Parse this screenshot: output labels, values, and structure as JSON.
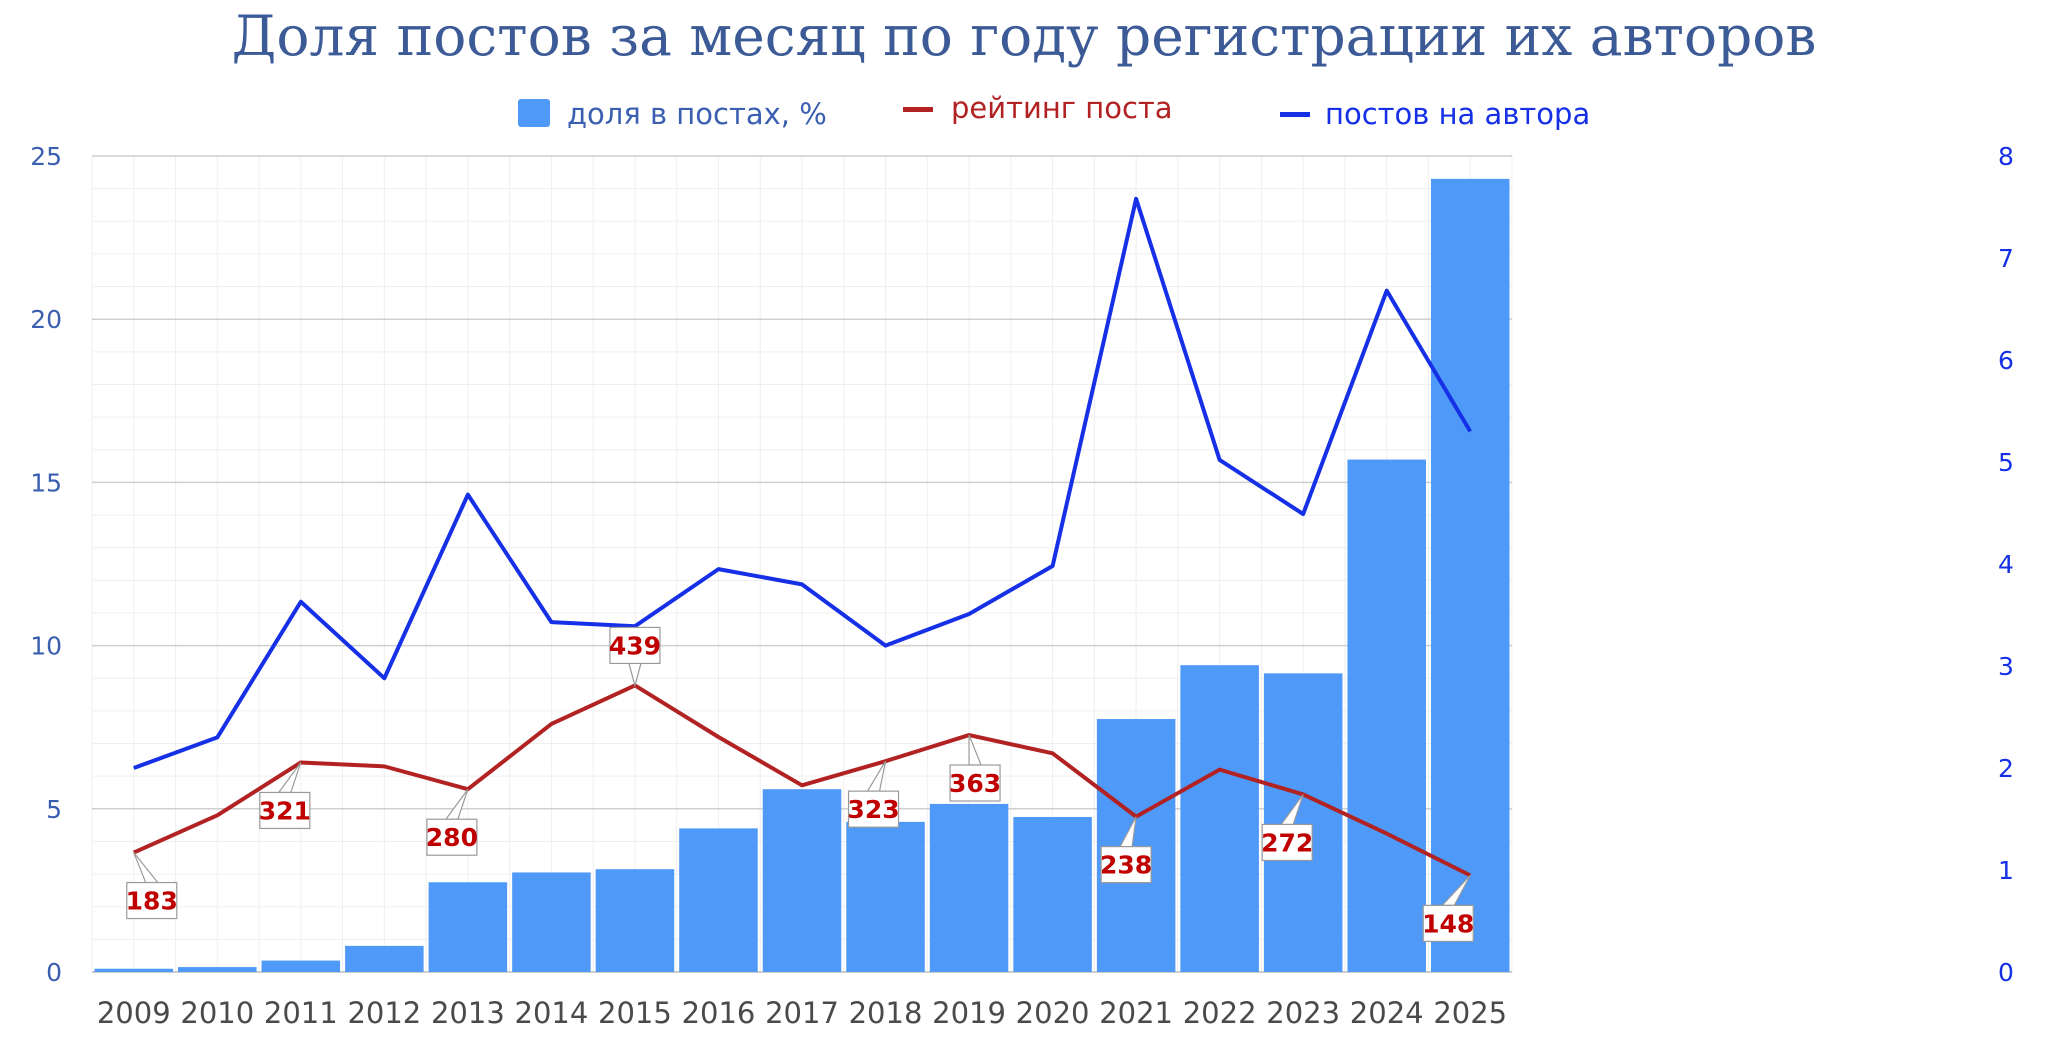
{
  "chart_data": {
    "type": "bar",
    "title": "Доля постов за месяц по году регистрации их авторов",
    "categories": [
      "2009",
      "2010",
      "2011",
      "2012",
      "2013",
      "2014",
      "2015",
      "2016",
      "2017",
      "2018",
      "2019",
      "2020",
      "2021",
      "2022",
      "2023",
      "2024",
      "2025"
    ],
    "series": [
      {
        "name": "доля в постах, %",
        "type": "bar",
        "axis": "left",
        "color": "#4f99f8",
        "values": [
          0.1,
          0.15,
          0.35,
          0.8,
          2.75,
          3.05,
          3.15,
          4.4,
          5.6,
          4.6,
          5.15,
          4.75,
          7.75,
          9.4,
          9.15,
          15.7,
          24.3
        ]
      },
      {
        "name": "рейтинг поста",
        "type": "line",
        "axis": "hidden",
        "color": "#b22222",
        "values": [
          183,
          240,
          321,
          315,
          280,
          380,
          439,
          360,
          286,
          323,
          363,
          335,
          238,
          310,
          272,
          212,
          148
        ],
        "labels": [
          "183",
          "",
          "321",
          "",
          "280",
          "",
          "439",
          "",
          "",
          "323",
          "363",
          "",
          "238",
          "",
          "272",
          "",
          "148"
        ]
      },
      {
        "name": "постов на автора",
        "type": "line",
        "axis": "right",
        "color": "#1530e6",
        "values": [
          2.0,
          2.3,
          3.63,
          2.88,
          4.68,
          3.43,
          3.39,
          3.95,
          3.8,
          3.2,
          3.51,
          3.98,
          7.58,
          5.02,
          4.49,
          6.68,
          5.3
        ]
      }
    ],
    "y_left": {
      "ylim": [
        0,
        25
      ],
      "ticks": [
        "0",
        "5",
        "10",
        "15",
        "20",
        "25"
      ],
      "color": "#3b5fb0"
    },
    "y_right": {
      "ylim": [
        0,
        8
      ],
      "ticks": [
        "0",
        "1",
        "2",
        "3",
        "4",
        "5",
        "6",
        "7",
        "8"
      ],
      "color": "#1530e6"
    },
    "y_hidden": {
      "ylim": [
        0,
        1250
      ]
    },
    "grid": true,
    "legend": "top-center"
  }
}
